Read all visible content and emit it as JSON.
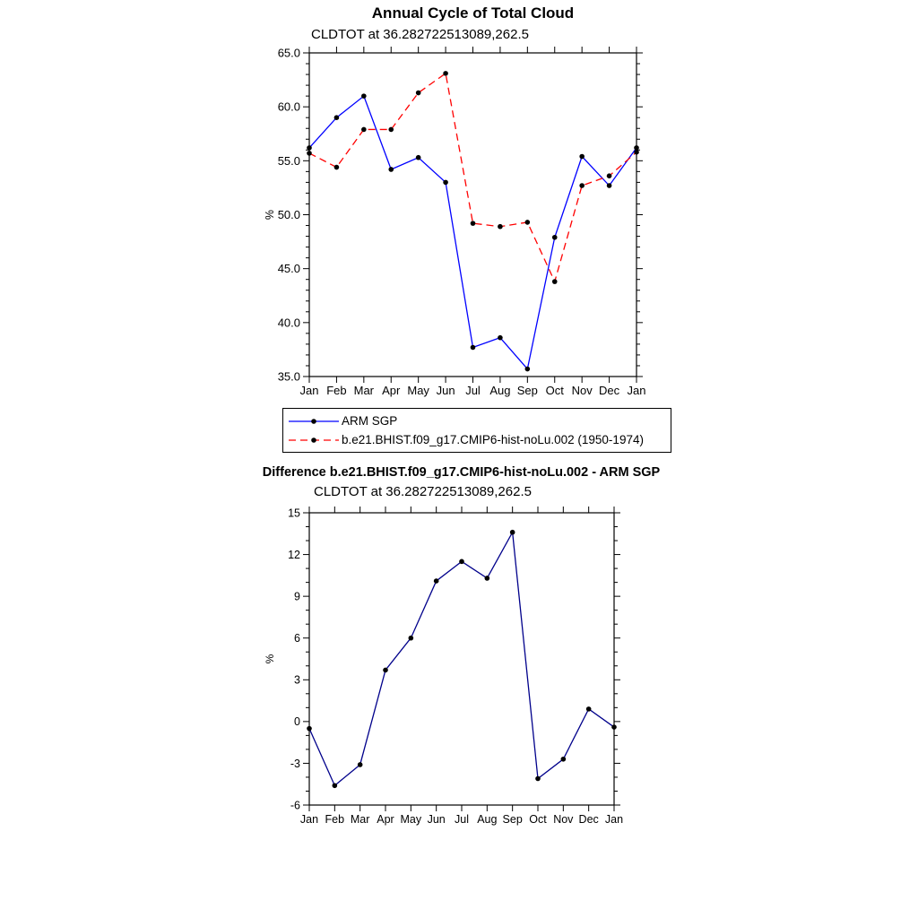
{
  "chart_data": [
    {
      "type": "line",
      "title": "Annual Cycle of Total Cloud",
      "subtitle": "CLDTOT at 36.282722513089,262.5",
      "ylabel": "%",
      "xlabel": "",
      "categories": [
        "Jan",
        "Feb",
        "Mar",
        "Apr",
        "May",
        "Jun",
        "Jul",
        "Aug",
        "Sep",
        "Oct",
        "Nov",
        "Dec",
        "Jan"
      ],
      "ylim": [
        35,
        65
      ],
      "yticks": [
        35,
        40,
        45,
        50,
        55,
        60,
        65
      ],
      "ytick_labels": [
        "35.0",
        "40.0",
        "45.0",
        "50.0",
        "55.0",
        "60.0",
        "65.0"
      ],
      "minor_tick_step": 1,
      "grid": false,
      "series": [
        {
          "name": "ARM SGP",
          "color": "#0000ff",
          "dash": "solid",
          "marker": "circle",
          "marker_color": "#000000",
          "values": [
            56.2,
            59.0,
            61.0,
            54.2,
            55.3,
            53.0,
            37.7,
            38.6,
            35.7,
            47.9,
            55.4,
            52.7,
            56.2
          ]
        },
        {
          "name": "b.e21.BHIST.f09_g17.CMIP6-hist-noLu.002 (1950-1974)",
          "color": "#ff0000",
          "dash": "dashed",
          "marker": "circle",
          "marker_color": "#000000",
          "values": [
            55.7,
            54.4,
            57.9,
            57.9,
            61.3,
            63.1,
            49.2,
            48.9,
            49.3,
            43.8,
            52.7,
            53.6,
            55.8
          ]
        }
      ],
      "legend": {
        "position": "below-left",
        "entries": [
          "ARM SGP",
          "b.e21.BHIST.f09_g17.CMIP6-hist-noLu.002 (1950-1974)"
        ]
      }
    },
    {
      "type": "line",
      "title": "Difference b.e21.BHIST.f09_g17.CMIP6-hist-noLu.002 - ARM SGP",
      "subtitle": "CLDTOT at 36.282722513089,262.5",
      "ylabel": "%",
      "xlabel": "",
      "categories": [
        "Jan",
        "Feb",
        "Mar",
        "Apr",
        "May",
        "Jun",
        "Jul",
        "Aug",
        "Sep",
        "Oct",
        "Nov",
        "Dec",
        "Jan"
      ],
      "ylim": [
        -6,
        15
      ],
      "yticks": [
        -6,
        -3,
        0,
        3,
        6,
        9,
        12,
        15
      ],
      "ytick_labels": [
        "-6",
        "-3",
        "0",
        "3",
        "6",
        "9",
        "12",
        "15"
      ],
      "minor_tick_step": 1,
      "grid": false,
      "series": [
        {
          "color": "#00008b",
          "dash": "solid",
          "marker": "circle",
          "marker_color": "#000000",
          "values": [
            -0.5,
            -4.6,
            -3.1,
            3.7,
            6.0,
            10.1,
            11.5,
            10.3,
            13.6,
            -4.1,
            -2.7,
            0.9,
            -0.4
          ]
        }
      ]
    }
  ],
  "colors": {
    "axis": "#000000",
    "background": "#ffffff"
  }
}
